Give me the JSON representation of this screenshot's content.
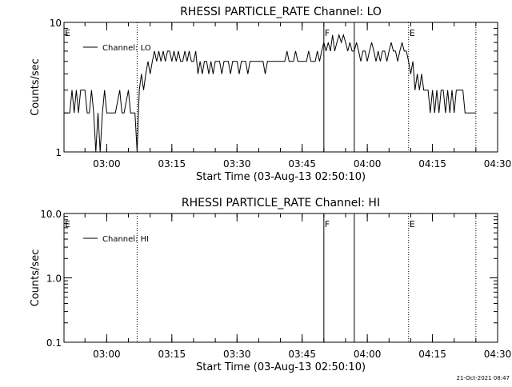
{
  "footer": {
    "timestamp": "21-Oct-2021 08:47"
  },
  "chart_data": [
    {
      "type": "line",
      "title": "RHESSI PARTICLE_RATE Channel: LO",
      "xlabel": "Start Time (03-Aug-13 02:50:10)",
      "ylabel": "Counts/sec",
      "yscale": "log",
      "ylim": [
        1,
        10
      ],
      "xlim": [
        "02:50:10",
        "04:30:00"
      ],
      "x_ticks": [
        "03:00",
        "03:15",
        "03:30",
        "03:45",
        "04:00",
        "04:15",
        "04:30"
      ],
      "y_ticks": [
        "1",
        "10"
      ],
      "legend": {
        "position": "top-left",
        "entries": [
          "Channel: LO"
        ]
      },
      "markers": [
        {
          "time": "02:50:10",
          "label": "E",
          "style": "none"
        },
        {
          "time": "03:07:00",
          "label": "",
          "style": "dotted"
        },
        {
          "time": "03:50:00",
          "label": "F",
          "style": "solid"
        },
        {
          "time": "03:57:00",
          "label": "",
          "style": "solid"
        },
        {
          "time": "04:09:30",
          "label": "E",
          "style": "dotted"
        },
        {
          "time": "04:25:00",
          "label": "",
          "style": "dotted"
        }
      ],
      "series": [
        {
          "name": "Channel: LO",
          "points": [
            [
              "02:50:10",
              2
            ],
            [
              "02:51:30",
              2
            ],
            [
              "02:52:00",
              3
            ],
            [
              "02:52:30",
              2
            ],
            [
              "02:53:00",
              3
            ],
            [
              "02:53:30",
              2
            ],
            [
              "02:54:00",
              3
            ],
            [
              "02:55:00",
              3
            ],
            [
              "02:55:30",
              2
            ],
            [
              "02:56:00",
              2
            ],
            [
              "02:56:30",
              3
            ],
            [
              "02:57:00",
              2
            ],
            [
              "02:57:30",
              1
            ],
            [
              "02:58:00",
              2
            ],
            [
              "02:58:30",
              1
            ],
            [
              "02:59:00",
              2
            ],
            [
              "02:59:30",
              3
            ],
            [
              "03:00:00",
              2
            ],
            [
              "03:01:00",
              2
            ],
            [
              "03:02:00",
              2
            ],
            [
              "03:03:00",
              3
            ],
            [
              "03:03:30",
              2
            ],
            [
              "03:04:00",
              2
            ],
            [
              "03:05:00",
              3
            ],
            [
              "03:05:30",
              2
            ],
            [
              "03:06:30",
              2
            ],
            [
              "03:07:00",
              1
            ],
            [
              "03:07:30",
              3
            ],
            [
              "03:08:00",
              4
            ],
            [
              "03:08:30",
              3
            ],
            [
              "03:09:00",
              4
            ],
            [
              "03:09:30",
              5
            ],
            [
              "03:10:00",
              4
            ],
            [
              "03:10:30",
              5
            ],
            [
              "03:11:00",
              6
            ],
            [
              "03:11:30",
              5
            ],
            [
              "03:12:00",
              6
            ],
            [
              "03:12:30",
              5
            ],
            [
              "03:13:00",
              6
            ],
            [
              "03:13:30",
              5
            ],
            [
              "03:14:00",
              6
            ],
            [
              "03:14:30",
              6
            ],
            [
              "03:15:00",
              5
            ],
            [
              "03:15:30",
              6
            ],
            [
              "03:16:00",
              5
            ],
            [
              "03:16:30",
              6
            ],
            [
              "03:17:00",
              5
            ],
            [
              "03:17:30",
              5
            ],
            [
              "03:18:00",
              6
            ],
            [
              "03:18:30",
              5
            ],
            [
              "03:19:00",
              6
            ],
            [
              "03:19:30",
              5
            ],
            [
              "03:20:00",
              5
            ],
            [
              "03:20:30",
              6
            ],
            [
              "03:21:00",
              4
            ],
            [
              "03:21:30",
              5
            ],
            [
              "03:22:00",
              4
            ],
            [
              "03:22:30",
              5
            ],
            [
              "03:23:00",
              5
            ],
            [
              "03:23:30",
              4
            ],
            [
              "03:24:00",
              5
            ],
            [
              "03:24:30",
              4
            ],
            [
              "03:25:00",
              5
            ],
            [
              "03:26:00",
              5
            ],
            [
              "03:26:30",
              4
            ],
            [
              "03:27:00",
              5
            ],
            [
              "03:28:00",
              5
            ],
            [
              "03:28:30",
              4
            ],
            [
              "03:29:00",
              5
            ],
            [
              "03:30:00",
              5
            ],
            [
              "03:30:30",
              4
            ],
            [
              "03:31:00",
              5
            ],
            [
              "03:32:00",
              5
            ],
            [
              "03:32:30",
              4
            ],
            [
              "03:33:00",
              5
            ],
            [
              "03:34:00",
              5
            ],
            [
              "03:35:00",
              5
            ],
            [
              "03:36:00",
              5
            ],
            [
              "03:36:30",
              4
            ],
            [
              "03:37:00",
              5
            ],
            [
              "03:38:00",
              5
            ],
            [
              "03:39:00",
              5
            ],
            [
              "03:40:00",
              5
            ],
            [
              "03:41:00",
              5
            ],
            [
              "03:41:30",
              6
            ],
            [
              "03:42:00",
              5
            ],
            [
              "03:43:00",
              5
            ],
            [
              "03:43:30",
              6
            ],
            [
              "03:44:00",
              5
            ],
            [
              "03:45:00",
              5
            ],
            [
              "03:46:00",
              5
            ],
            [
              "03:46:30",
              6
            ],
            [
              "03:47:00",
              5
            ],
            [
              "03:48:00",
              5
            ],
            [
              "03:48:30",
              6
            ],
            [
              "03:49:00",
              5
            ],
            [
              "03:49:30",
              6
            ],
            [
              "03:50:00",
              7
            ],
            [
              "03:50:30",
              6
            ],
            [
              "03:51:00",
              7
            ],
            [
              "03:51:30",
              6
            ],
            [
              "03:52:00",
              8
            ],
            [
              "03:52:30",
              6
            ],
            [
              "03:53:00",
              7
            ],
            [
              "03:53:30",
              8
            ],
            [
              "03:54:00",
              7
            ],
            [
              "03:54:30",
              8
            ],
            [
              "03:55:00",
              7
            ],
            [
              "03:55:30",
              6
            ],
            [
              "03:56:00",
              7
            ],
            [
              "03:56:30",
              6
            ],
            [
              "03:57:00",
              6
            ],
            [
              "03:57:30",
              7
            ],
            [
              "03:58:00",
              6
            ],
            [
              "03:58:30",
              5
            ],
            [
              "03:59:00",
              6
            ],
            [
              "03:59:30",
              6
            ],
            [
              "04:00:00",
              5
            ],
            [
              "04:00:30",
              6
            ],
            [
              "04:01:00",
              7
            ],
            [
              "04:01:30",
              6
            ],
            [
              "04:02:00",
              5
            ],
            [
              "04:02:30",
              6
            ],
            [
              "04:03:00",
              5
            ],
            [
              "04:03:30",
              6
            ],
            [
              "04:04:00",
              6
            ],
            [
              "04:04:30",
              5
            ],
            [
              "04:05:00",
              6
            ],
            [
              "04:05:30",
              7
            ],
            [
              "04:06:00",
              6
            ],
            [
              "04:06:30",
              6
            ],
            [
              "04:07:00",
              5
            ],
            [
              "04:07:30",
              6
            ],
            [
              "04:08:00",
              7
            ],
            [
              "04:08:30",
              6
            ],
            [
              "04:09:00",
              6
            ],
            [
              "04:09:30",
              5
            ],
            [
              "04:10:00",
              4
            ],
            [
              "04:10:30",
              5
            ],
            [
              "04:11:00",
              3
            ],
            [
              "04:11:30",
              4
            ],
            [
              "04:12:00",
              3
            ],
            [
              "04:12:30",
              4
            ],
            [
              "04:13:00",
              3
            ],
            [
              "04:14:00",
              3
            ],
            [
              "04:14:30",
              2
            ],
            [
              "04:15:00",
              3
            ],
            [
              "04:15:30",
              2
            ],
            [
              "04:16:00",
              3
            ],
            [
              "04:16:30",
              2
            ],
            [
              "04:17:00",
              3
            ],
            [
              "04:17:30",
              3
            ],
            [
              "04:18:00",
              2
            ],
            [
              "04:18:30",
              3
            ],
            [
              "04:19:00",
              2
            ],
            [
              "04:19:30",
              3
            ],
            [
              "04:20:00",
              2
            ],
            [
              "04:20:30",
              3
            ],
            [
              "04:21:00",
              3
            ],
            [
              "04:22:00",
              3
            ],
            [
              "04:22:30",
              2
            ],
            [
              "04:23:00",
              2
            ],
            [
              "04:24:00",
              2
            ],
            [
              "04:25:00",
              2
            ]
          ]
        }
      ]
    },
    {
      "type": "line",
      "title": "RHESSI PARTICLE_RATE Channel: HI",
      "xlabel": "Start Time (03-Aug-13 02:50:10)",
      "ylabel": "Counts/sec",
      "yscale": "log",
      "ylim": [
        0.1,
        10
      ],
      "xlim": [
        "02:50:10",
        "04:30:00"
      ],
      "x_ticks": [
        "03:00",
        "03:15",
        "03:30",
        "03:45",
        "04:00",
        "04:15",
        "04:30"
      ],
      "y_ticks": [
        "0.1",
        "1.0",
        "10.0"
      ],
      "legend": {
        "position": "top-left",
        "entries": [
          "Channel: HI"
        ]
      },
      "markers": [
        {
          "time": "02:50:10",
          "label": "E",
          "style": "none"
        },
        {
          "time": "03:07:00",
          "label": "",
          "style": "dotted"
        },
        {
          "time": "03:50:00",
          "label": "F",
          "style": "solid"
        },
        {
          "time": "03:57:00",
          "label": "",
          "style": "solid"
        },
        {
          "time": "04:09:30",
          "label": "E",
          "style": "dotted"
        },
        {
          "time": "04:25:00",
          "label": "",
          "style": "dotted"
        }
      ],
      "series": [
        {
          "name": "Channel: HI",
          "points": []
        }
      ]
    }
  ]
}
